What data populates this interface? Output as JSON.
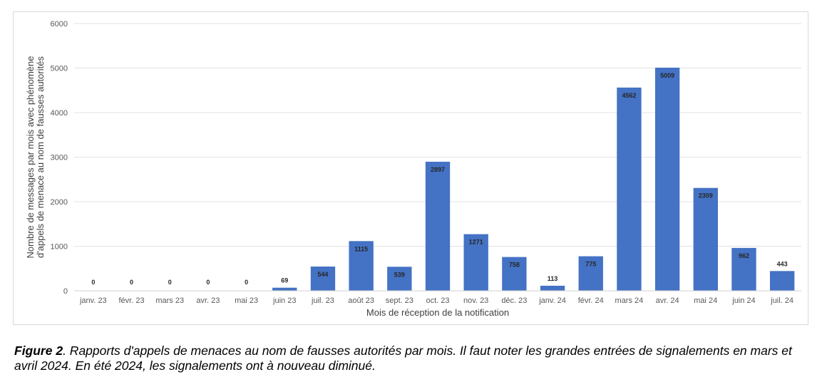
{
  "chart_data": {
    "type": "bar",
    "title": "",
    "xlabel": "Mois de réception de la notification",
    "ylabel_lines": [
      "Nombre de messages par mois avec phénomène",
      "d'appels de menace au nom de fausses autorités"
    ],
    "ylim": [
      0,
      6000
    ],
    "yticks": [
      "0",
      "1000",
      "2000",
      "3000",
      "4000",
      "5000",
      "6000"
    ],
    "grid": true,
    "legend": "none",
    "bar_color": "#4472c4",
    "categories": [
      "janv. 23",
      "févr. 23",
      "mars 23",
      "avr. 23",
      "mai 23",
      "juin 23",
      "juil. 23",
      "août 23",
      "sept. 23",
      "oct. 23",
      "nov. 23",
      "déc. 23",
      "janv. 24",
      "févr. 24",
      "mars 24",
      "avr. 24",
      "mai 24",
      "juin 24",
      "juil. 24"
    ],
    "values": [
      0,
      0,
      0,
      0,
      0,
      69,
      544,
      1115,
      539,
      2897,
      1271,
      758,
      113,
      775,
      4562,
      5009,
      2309,
      962,
      443
    ],
    "data_labels": [
      "0",
      "0",
      "0",
      "0",
      "0",
      "69",
      "544",
      "1115",
      "539",
      "2897",
      "1271",
      "758",
      "113",
      "775",
      "4562",
      "5009",
      "2309",
      "962",
      "443"
    ]
  },
  "caption": {
    "label": "Figure 2",
    "text": ". Rapports d'appels de menaces au nom de fausses autorités par mois. Il faut noter les grandes entrées de signalements en mars et avril 2024. En été 2024, les signalements ont à nouveau diminué."
  }
}
